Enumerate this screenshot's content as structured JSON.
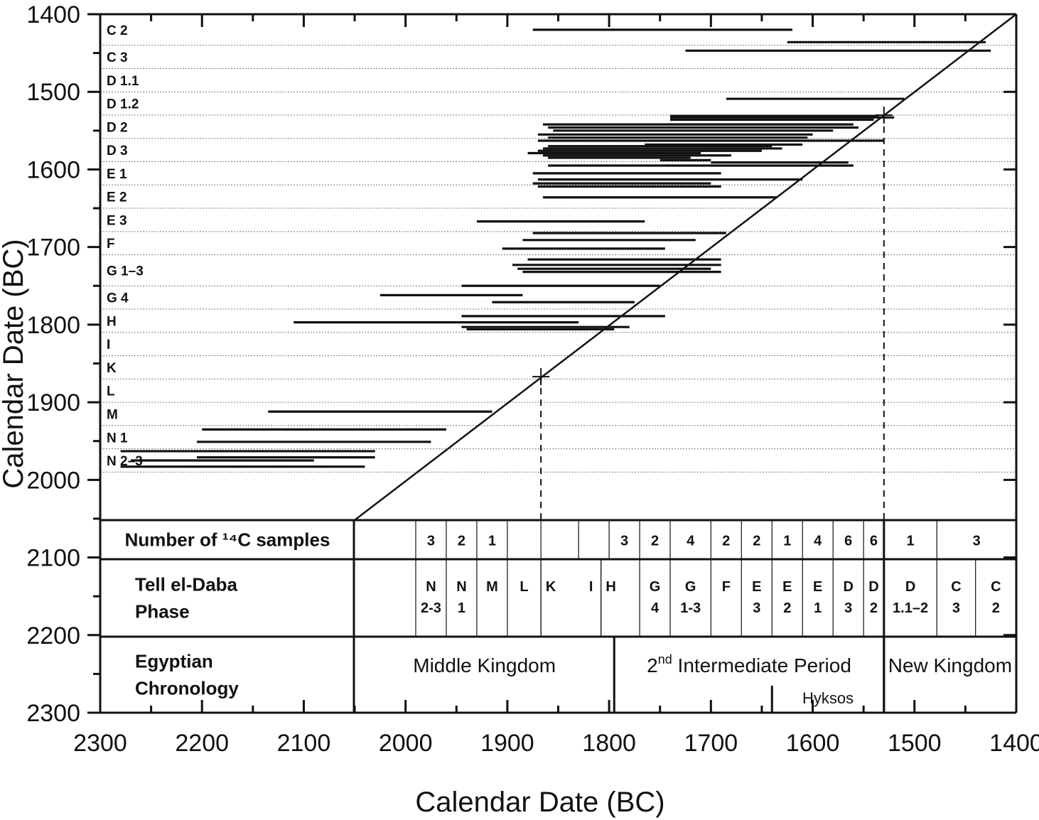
{
  "chart_data": {
    "type": "scatter",
    "title": "",
    "xlabel": "Calendar Date (BC)",
    "ylabel": "Calendar Date (BC)",
    "xlim": [
      2300,
      1400
    ],
    "ylim": [
      1400,
      2300
    ],
    "x_ticks": [
      "2300",
      "2200",
      "2100",
      "2000",
      "1900",
      "1800",
      "1700",
      "1600",
      "1500",
      "1400"
    ],
    "y_ticks": [
      "1400",
      "1500",
      "1600",
      "1700",
      "1800",
      "1900",
      "2000",
      "2100",
      "2200",
      "2300"
    ],
    "reference_line": {
      "from": [
        2050,
        2050
      ],
      "to": [
        1400,
        1400
      ]
    },
    "markers": [
      {
        "x": 1867,
        "y": 1867
      },
      {
        "x": 1530,
        "y": 1530
      }
    ],
    "phases": [
      {
        "label": "C 2",
        "y_top": 1400,
        "y_bottom": 1440
      },
      {
        "label": "C 3",
        "y_top": 1440,
        "y_bottom": 1470
      },
      {
        "label": "D 1.1",
        "y_top": 1470,
        "y_bottom": 1500
      },
      {
        "label": "D 1.2",
        "y_top": 1500,
        "y_bottom": 1530
      },
      {
        "label": "D 2",
        "y_top": 1530,
        "y_bottom": 1560
      },
      {
        "label": "D 3",
        "y_top": 1560,
        "y_bottom": 1590
      },
      {
        "label": "E 1",
        "y_top": 1590,
        "y_bottom": 1620
      },
      {
        "label": "E 2",
        "y_top": 1620,
        "y_bottom": 1650
      },
      {
        "label": "E 3",
        "y_top": 1650,
        "y_bottom": 1680
      },
      {
        "label": "F",
        "y_top": 1680,
        "y_bottom": 1710
      },
      {
        "label": "G 1–3",
        "y_top": 1710,
        "y_bottom": 1750
      },
      {
        "label": "G 4",
        "y_top": 1750,
        "y_bottom": 1780
      },
      {
        "label": "H",
        "y_top": 1780,
        "y_bottom": 1810
      },
      {
        "label": "I",
        "y_top": 1810,
        "y_bottom": 1840
      },
      {
        "label": "K",
        "y_top": 1840,
        "y_bottom": 1870
      },
      {
        "label": "L",
        "y_top": 1870,
        "y_bottom": 1900
      },
      {
        "label": "M",
        "y_top": 1900,
        "y_bottom": 1930
      },
      {
        "label": "N 1",
        "y_top": 1930,
        "y_bottom": 1960
      },
      {
        "label": "N 2–3",
        "y_top": 1960,
        "y_bottom": 1990
      }
    ],
    "ranges": [
      {
        "x_from": 1875,
        "x_to": 1620,
        "y": 1420
      },
      {
        "x_from": 1625,
        "x_to": 1430,
        "y": 1436
      },
      {
        "x_from": 1725,
        "x_to": 1425,
        "y": 1447
      },
      {
        "x_from": 1685,
        "x_to": 1510,
        "y": 1509
      },
      {
        "x_from": 1740,
        "x_to": 1535,
        "y": 1531
      },
      {
        "x_from": 1740,
        "x_to": 1520,
        "y": 1533
      },
      {
        "x_from": 1740,
        "x_to": 1540,
        "y": 1536
      },
      {
        "x_from": 1865,
        "x_to": 1560,
        "y": 1542
      },
      {
        "x_from": 1860,
        "x_to": 1555,
        "y": 1546
      },
      {
        "x_from": 1855,
        "x_to": 1580,
        "y": 1550
      },
      {
        "x_from": 1870,
        "x_to": 1600,
        "y": 1555
      },
      {
        "x_from": 1860,
        "x_to": 1605,
        "y": 1559
      },
      {
        "x_from": 1870,
        "x_to": 1530,
        "y": 1563
      },
      {
        "x_from": 1765,
        "x_to": 1610,
        "y": 1568
      },
      {
        "x_from": 1860,
        "x_to": 1640,
        "y": 1570
      },
      {
        "x_from": 1865,
        "x_to": 1630,
        "y": 1573
      },
      {
        "x_from": 1870,
        "x_to": 1650,
        "y": 1576
      },
      {
        "x_from": 1880,
        "x_to": 1710,
        "y": 1579
      },
      {
        "x_from": 1865,
        "x_to": 1680,
        "y": 1582
      },
      {
        "x_from": 1860,
        "x_to": 1720,
        "y": 1585
      },
      {
        "x_from": 1750,
        "x_to": 1700,
        "y": 1588
      },
      {
        "x_from": 1700,
        "x_to": 1565,
        "y": 1591
      },
      {
        "x_from": 1860,
        "x_to": 1560,
        "y": 1595
      },
      {
        "x_from": 1875,
        "x_to": 1690,
        "y": 1605
      },
      {
        "x_from": 1870,
        "x_to": 1610,
        "y": 1613
      },
      {
        "x_from": 1875,
        "x_to": 1700,
        "y": 1618
      },
      {
        "x_from": 1870,
        "x_to": 1690,
        "y": 1622
      },
      {
        "x_from": 1865,
        "x_to": 1635,
        "y": 1636
      },
      {
        "x_from": 1930,
        "x_to": 1765,
        "y": 1667
      },
      {
        "x_from": 1875,
        "x_to": 1685,
        "y": 1682
      },
      {
        "x_from": 1885,
        "x_to": 1715,
        "y": 1691
      },
      {
        "x_from": 1905,
        "x_to": 1745,
        "y": 1702
      },
      {
        "x_from": 1880,
        "x_to": 1690,
        "y": 1716
      },
      {
        "x_from": 1895,
        "x_to": 1690,
        "y": 1723
      },
      {
        "x_from": 1890,
        "x_to": 1700,
        "y": 1728
      },
      {
        "x_from": 1885,
        "x_to": 1690,
        "y": 1732
      },
      {
        "x_from": 1945,
        "x_to": 1750,
        "y": 1750
      },
      {
        "x_from": 2025,
        "x_to": 1885,
        "y": 1762
      },
      {
        "x_from": 1915,
        "x_to": 1775,
        "y": 1771
      },
      {
        "x_from": 1945,
        "x_to": 1745,
        "y": 1789
      },
      {
        "x_from": 2110,
        "x_to": 1830,
        "y": 1797
      },
      {
        "x_from": 1945,
        "x_to": 1780,
        "y": 1803
      },
      {
        "x_from": 1940,
        "x_to": 1795,
        "y": 1806
      },
      {
        "x_from": 2135,
        "x_to": 1915,
        "y": 1912
      },
      {
        "x_from": 2200,
        "x_to": 1960,
        "y": 1935
      },
      {
        "x_from": 2205,
        "x_to": 1975,
        "y": 1951
      },
      {
        "x_from": 2280,
        "x_to": 2030,
        "y": 1963
      },
      {
        "x_from": 2205,
        "x_to": 2030,
        "y": 1971
      },
      {
        "x_from": 2270,
        "x_to": 2090,
        "y": 1975
      },
      {
        "x_from": 2280,
        "x_to": 2040,
        "y": 1983
      }
    ]
  },
  "table": {
    "rows": [
      {
        "label_lines": [
          "Number  of ¹⁴C samples"
        ]
      },
      {
        "label_lines": [
          "Tell el-Daba",
          "Phase"
        ]
      },
      {
        "label_lines": [
          "Egyptian",
          "Chronology"
        ]
      }
    ],
    "sample_counts": [
      {
        "x_from": 1990,
        "x_to": 1960,
        "count": "3"
      },
      {
        "x_from": 1960,
        "x_to": 1930,
        "count": "2"
      },
      {
        "x_from": 1930,
        "x_to": 1900,
        "count": "1"
      },
      {
        "x_from": 1900,
        "x_to": 1867,
        "count": ""
      },
      {
        "x_from": 1867,
        "x_to": 1830,
        "count": ""
      },
      {
        "x_from": 1830,
        "x_to": 1800,
        "count": ""
      },
      {
        "x_from": 1800,
        "x_to": 1770,
        "count": "3"
      },
      {
        "x_from": 1770,
        "x_to": 1740,
        "count": "2"
      },
      {
        "x_from": 1740,
        "x_to": 1700,
        "count": "4"
      },
      {
        "x_from": 1700,
        "x_to": 1670,
        "count": "2"
      },
      {
        "x_from": 1670,
        "x_to": 1640,
        "count": "2"
      },
      {
        "x_from": 1640,
        "x_to": 1610,
        "count": "1"
      },
      {
        "x_from": 1610,
        "x_to": 1580,
        "count": "4"
      },
      {
        "x_from": 1580,
        "x_to": 1550,
        "count": "6"
      },
      {
        "x_from": 1550,
        "x_to": 1530,
        "count": "6"
      },
      {
        "x_from": 1530,
        "x_to": 1478,
        "count": "1"
      },
      {
        "x_from": 1478,
        "x_to": 1400,
        "count": "3"
      }
    ],
    "phase_cells": [
      {
        "x_from": 1990,
        "x_to": 1960,
        "lines": [
          "N",
          "2-3"
        ]
      },
      {
        "x_from": 1960,
        "x_to": 1930,
        "lines": [
          "N",
          "1"
        ]
      },
      {
        "x_from": 1930,
        "x_to": 1900,
        "lines": [
          "M"
        ]
      },
      {
        "x_from": 1900,
        "x_to": 1867,
        "lines": [
          "L"
        ]
      },
      {
        "x_from": 1867,
        "x_to": 1808,
        "lines": [
          "K"
        ],
        "align": "left"
      },
      {
        "x_from": 1867,
        "x_to": 1808,
        "lines": [
          "I"
        ],
        "align": "right"
      },
      {
        "x_from": 1808,
        "x_to": 1770,
        "lines": [
          "H"
        ],
        "align": "left"
      },
      {
        "x_from": 1770,
        "x_to": 1740,
        "lines": [
          "G",
          "4"
        ]
      },
      {
        "x_from": 1740,
        "x_to": 1700,
        "lines": [
          "G",
          "1-3"
        ]
      },
      {
        "x_from": 1700,
        "x_to": 1670,
        "lines": [
          "F"
        ]
      },
      {
        "x_from": 1670,
        "x_to": 1640,
        "lines": [
          "E",
          "3"
        ]
      },
      {
        "x_from": 1640,
        "x_to": 1610,
        "lines": [
          "E",
          "2"
        ]
      },
      {
        "x_from": 1610,
        "x_to": 1580,
        "lines": [
          "E",
          "1"
        ]
      },
      {
        "x_from": 1580,
        "x_to": 1550,
        "lines": [
          "D",
          "3"
        ]
      },
      {
        "x_from": 1550,
        "x_to": 1530,
        "lines": [
          "D",
          "2"
        ]
      },
      {
        "x_from": 1530,
        "x_to": 1478,
        "lines": [
          "D",
          "1.1–2"
        ]
      },
      {
        "x_from": 1478,
        "x_to": 1440,
        "lines": [
          "C",
          "3"
        ]
      },
      {
        "x_from": 1440,
        "x_to": 1400,
        "lines": [
          "C",
          "2"
        ]
      }
    ],
    "periods": [
      {
        "label": "Middle Kingdom",
        "x_from": 2050,
        "x_to": 1795
      },
      {
        "label": "2nd Intermediate Period",
        "x_from": 1795,
        "x_to": 1530,
        "sup": "nd"
      },
      {
        "label": "New Kingdom",
        "x_from": 1530,
        "x_to": 1400
      }
    ],
    "subperiod": {
      "label": "Hyksos",
      "x_from": 1640,
      "x_to": 1530
    }
  }
}
